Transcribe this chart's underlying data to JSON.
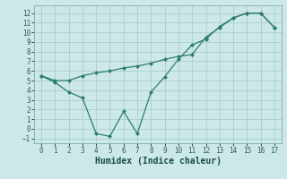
{
  "x": [
    0,
    1,
    2,
    3,
    4,
    5,
    6,
    7,
    8,
    9,
    10,
    11,
    12,
    13,
    14,
    15,
    16,
    17
  ],
  "line1_y": [
    5.5,
    5.0,
    5.0,
    5.5,
    5.8,
    6.0,
    6.3,
    6.5,
    6.8,
    7.2,
    7.5,
    7.7,
    9.5,
    10.5,
    11.5,
    12.0,
    12.0,
    10.5
  ],
  "line2_y": [
    5.5,
    4.8,
    3.8,
    3.2,
    -0.5,
    -0.8,
    1.8,
    -0.5,
    3.8,
    5.4,
    7.2,
    8.7,
    9.3,
    10.6,
    11.5,
    12.0,
    12.0,
    10.5
  ],
  "line_color": "#2e7d6e",
  "bg_color": "#cce8e8",
  "grid_color": "#aacece",
  "xlabel": "Humidex (Indice chaleur)",
  "ylim": [
    -1.5,
    12.8
  ],
  "xlim": [
    -0.5,
    17.5
  ],
  "yticks": [
    -1,
    0,
    1,
    2,
    3,
    4,
    5,
    6,
    7,
    8,
    9,
    10,
    11,
    12
  ],
  "xticks": [
    0,
    1,
    2,
    3,
    4,
    5,
    6,
    7,
    8,
    9,
    10,
    11,
    12,
    13,
    14,
    15,
    16,
    17
  ],
  "xlabel_fontsize": 7,
  "tick_fontsize": 5.5
}
